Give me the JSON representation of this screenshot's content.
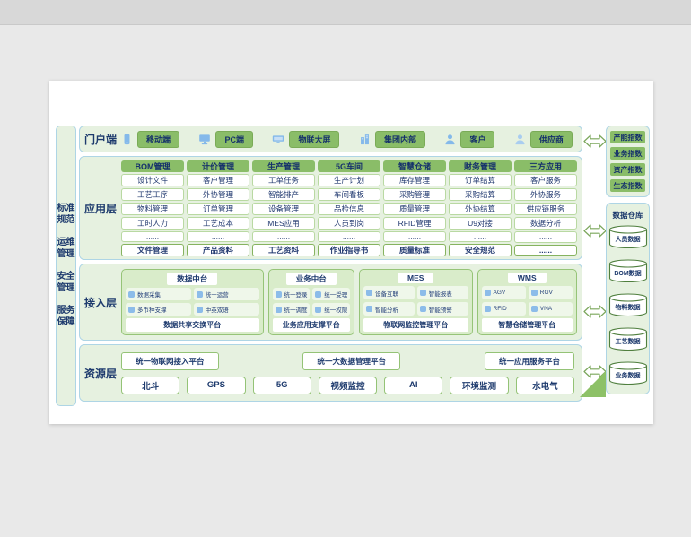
{
  "colors": {
    "accent_green": "#8abd68",
    "panel_green": "#e6f1e0",
    "group_green": "#d9ecca",
    "border_blue": "#aed5e5",
    "border_green": "#96c478",
    "text_navy": "#1d3a6d",
    "icon_blue": "#84b9ea",
    "arrow_green": "#7aa65a"
  },
  "sidebar_left": {
    "items": [
      "标准规范",
      "运维管理",
      "安全管理",
      "服务保障"
    ]
  },
  "portal": {
    "label": "门户端",
    "items": [
      {
        "icon": "mobile-icon",
        "label": "移动端"
      },
      {
        "icon": "pc-monitor-icon",
        "label": "PC端"
      },
      {
        "icon": "big-screen-icon",
        "label": "物联大屏"
      },
      {
        "icon": "building-icon",
        "label": "集团内部"
      },
      {
        "icon": "customer-icon",
        "label": "客户"
      },
      {
        "icon": "supplier-icon",
        "label": "供应商"
      }
    ]
  },
  "app_layer": {
    "label": "应用层",
    "columns": [
      {
        "header": "BOM管理",
        "items": [
          "设计文件",
          "工艺工序",
          "物料管理",
          "工时人力",
          "......"
        ],
        "footer": "文件管理"
      },
      {
        "header": "计价管理",
        "items": [
          "客户管理",
          "外协管理",
          "订单管理",
          "工艺成本",
          "......"
        ],
        "footer": "产品资料"
      },
      {
        "header": "生产管理",
        "items": [
          "工单任务",
          "智能排产",
          "设备管理",
          "MES应用",
          "......"
        ],
        "footer": "工艺资料"
      },
      {
        "header": "5G车间",
        "items": [
          "生产计划",
          "车间看板",
          "品检信息",
          "人员到岗",
          "......"
        ],
        "footer": "作业指导书"
      },
      {
        "header": "智慧仓储",
        "items": [
          "库存管理",
          "采购管理",
          "质量管理",
          "RFID管理",
          "......"
        ],
        "footer": "质量标准"
      },
      {
        "header": "财务管理",
        "items": [
          "订单结算",
          "采购结算",
          "外协结算",
          "U9对接",
          "......"
        ],
        "footer": "安全规范"
      },
      {
        "header": "三方应用",
        "items": [
          "客户服务",
          "外协服务",
          "供应链服务",
          "数据分析",
          "......"
        ],
        "footer": "......"
      }
    ]
  },
  "access_layer": {
    "label": "接入层",
    "groups": [
      {
        "title": "数据中台",
        "chips": [
          "数据采集",
          "统一运营",
          "多币种支撑",
          "中英双语"
        ],
        "platform": "数据共享交换平台"
      },
      {
        "title": "业务中台",
        "chips": [
          "统一登录",
          "统一受理",
          "统一调度",
          "统一权限"
        ],
        "platform": "业务应用支撑平台"
      },
      {
        "title": "MES",
        "chips": [
          "设备互联",
          "智能报表",
          "智能分析",
          "智能预警"
        ],
        "platform": "物联网监控管理平台"
      },
      {
        "title": "WMS",
        "chips": [
          "AGV",
          "RGV",
          "RFID",
          "VNA"
        ],
        "platform": "智慧仓储管理平台"
      }
    ]
  },
  "resource_layer": {
    "label": "资源层",
    "platforms": [
      "统一物联网接入平台",
      "统一大数据管理平台",
      "统一应用服务平台"
    ],
    "resources": [
      "北斗",
      "GPS",
      "5G",
      "视频监控",
      "AI",
      "环境监测",
      "水电气"
    ]
  },
  "right_panel": {
    "indices": [
      "产能指数",
      "业务指数",
      "资产指数",
      "生态指数"
    ],
    "warehouse": {
      "title": "数据仓库",
      "databases": [
        "人员数据",
        "BOM数据",
        "物料数据",
        "工艺数据",
        "业务数据"
      ]
    }
  }
}
